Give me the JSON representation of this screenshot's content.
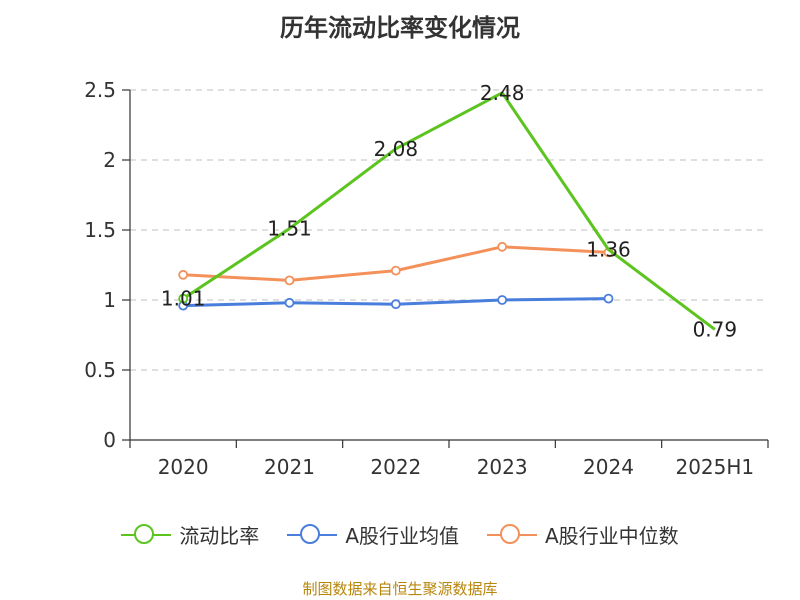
{
  "title": "历年流动比率变化情况",
  "source_note": "制图数据来自恒生聚源数据库",
  "chart_data": {
    "type": "line",
    "categories": [
      "2020",
      "2021",
      "2022",
      "2023",
      "2024",
      "2025H1"
    ],
    "ylim": [
      0,
      2.5
    ],
    "yticks": [
      0,
      0.5,
      1,
      1.5,
      2,
      2.5
    ],
    "ytick_labels": [
      "0",
      "0.5",
      "1",
      "1.5",
      "2",
      "2.5"
    ],
    "grid": true,
    "legend_position": "bottom",
    "series": [
      {
        "name": "流动比率",
        "color": "#5cc41f",
        "values": [
          1.01,
          1.51,
          2.08,
          2.48,
          1.36,
          0.79
        ],
        "labels": [
          "1.01",
          "1.51",
          "2.08",
          "2.48",
          "1.36",
          "0.79"
        ],
        "show_markers_at": [
          0
        ]
      },
      {
        "name": "A股行业均值",
        "color": "#4a7edc",
        "values": [
          0.96,
          0.98,
          0.97,
          1.0,
          1.01,
          null
        ]
      },
      {
        "name": "A股行业中位数",
        "color": "#f4915a",
        "values": [
          1.18,
          1.14,
          1.21,
          1.38,
          1.34,
          null
        ]
      }
    ]
  }
}
